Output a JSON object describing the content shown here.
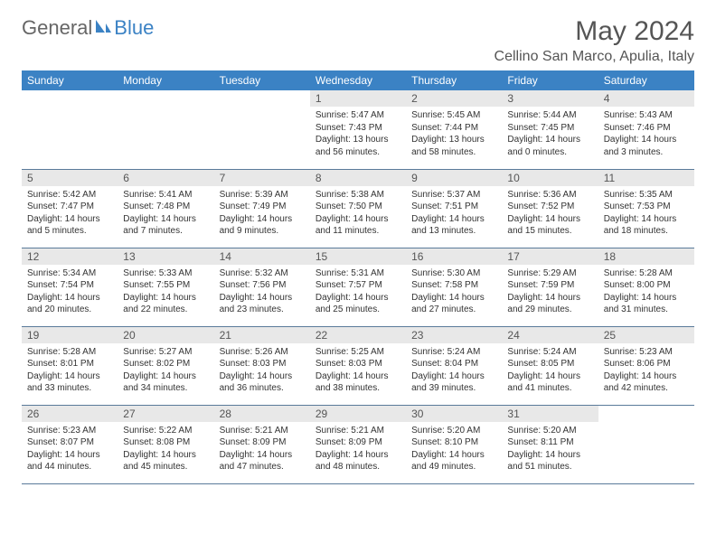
{
  "logo": {
    "gray": "General",
    "blue": "Blue"
  },
  "title": "May 2024",
  "location": "Cellino San Marco, Apulia, Italy",
  "colors": {
    "header_bg": "#3b82c4",
    "header_text": "#ffffff",
    "daynum_bg": "#e8e8e8",
    "border": "#5a7a9a",
    "body_text": "#333333",
    "title_text": "#555555"
  },
  "weekdays": [
    "Sunday",
    "Monday",
    "Tuesday",
    "Wednesday",
    "Thursday",
    "Friday",
    "Saturday"
  ],
  "weeks": [
    [
      null,
      null,
      null,
      {
        "n": "1",
        "sr": "5:47 AM",
        "ss": "7:43 PM",
        "dl": "13 hours and 56 minutes."
      },
      {
        "n": "2",
        "sr": "5:45 AM",
        "ss": "7:44 PM",
        "dl": "13 hours and 58 minutes."
      },
      {
        "n": "3",
        "sr": "5:44 AM",
        "ss": "7:45 PM",
        "dl": "14 hours and 0 minutes."
      },
      {
        "n": "4",
        "sr": "5:43 AM",
        "ss": "7:46 PM",
        "dl": "14 hours and 3 minutes."
      }
    ],
    [
      {
        "n": "5",
        "sr": "5:42 AM",
        "ss": "7:47 PM",
        "dl": "14 hours and 5 minutes."
      },
      {
        "n": "6",
        "sr": "5:41 AM",
        "ss": "7:48 PM",
        "dl": "14 hours and 7 minutes."
      },
      {
        "n": "7",
        "sr": "5:39 AM",
        "ss": "7:49 PM",
        "dl": "14 hours and 9 minutes."
      },
      {
        "n": "8",
        "sr": "5:38 AM",
        "ss": "7:50 PM",
        "dl": "14 hours and 11 minutes."
      },
      {
        "n": "9",
        "sr": "5:37 AM",
        "ss": "7:51 PM",
        "dl": "14 hours and 13 minutes."
      },
      {
        "n": "10",
        "sr": "5:36 AM",
        "ss": "7:52 PM",
        "dl": "14 hours and 15 minutes."
      },
      {
        "n": "11",
        "sr": "5:35 AM",
        "ss": "7:53 PM",
        "dl": "14 hours and 18 minutes."
      }
    ],
    [
      {
        "n": "12",
        "sr": "5:34 AM",
        "ss": "7:54 PM",
        "dl": "14 hours and 20 minutes."
      },
      {
        "n": "13",
        "sr": "5:33 AM",
        "ss": "7:55 PM",
        "dl": "14 hours and 22 minutes."
      },
      {
        "n": "14",
        "sr": "5:32 AM",
        "ss": "7:56 PM",
        "dl": "14 hours and 23 minutes."
      },
      {
        "n": "15",
        "sr": "5:31 AM",
        "ss": "7:57 PM",
        "dl": "14 hours and 25 minutes."
      },
      {
        "n": "16",
        "sr": "5:30 AM",
        "ss": "7:58 PM",
        "dl": "14 hours and 27 minutes."
      },
      {
        "n": "17",
        "sr": "5:29 AM",
        "ss": "7:59 PM",
        "dl": "14 hours and 29 minutes."
      },
      {
        "n": "18",
        "sr": "5:28 AM",
        "ss": "8:00 PM",
        "dl": "14 hours and 31 minutes."
      }
    ],
    [
      {
        "n": "19",
        "sr": "5:28 AM",
        "ss": "8:01 PM",
        "dl": "14 hours and 33 minutes."
      },
      {
        "n": "20",
        "sr": "5:27 AM",
        "ss": "8:02 PM",
        "dl": "14 hours and 34 minutes."
      },
      {
        "n": "21",
        "sr": "5:26 AM",
        "ss": "8:03 PM",
        "dl": "14 hours and 36 minutes."
      },
      {
        "n": "22",
        "sr": "5:25 AM",
        "ss": "8:03 PM",
        "dl": "14 hours and 38 minutes."
      },
      {
        "n": "23",
        "sr": "5:24 AM",
        "ss": "8:04 PM",
        "dl": "14 hours and 39 minutes."
      },
      {
        "n": "24",
        "sr": "5:24 AM",
        "ss": "8:05 PM",
        "dl": "14 hours and 41 minutes."
      },
      {
        "n": "25",
        "sr": "5:23 AM",
        "ss": "8:06 PM",
        "dl": "14 hours and 42 minutes."
      }
    ],
    [
      {
        "n": "26",
        "sr": "5:23 AM",
        "ss": "8:07 PM",
        "dl": "14 hours and 44 minutes."
      },
      {
        "n": "27",
        "sr": "5:22 AM",
        "ss": "8:08 PM",
        "dl": "14 hours and 45 minutes."
      },
      {
        "n": "28",
        "sr": "5:21 AM",
        "ss": "8:09 PM",
        "dl": "14 hours and 47 minutes."
      },
      {
        "n": "29",
        "sr": "5:21 AM",
        "ss": "8:09 PM",
        "dl": "14 hours and 48 minutes."
      },
      {
        "n": "30",
        "sr": "5:20 AM",
        "ss": "8:10 PM",
        "dl": "14 hours and 49 minutes."
      },
      {
        "n": "31",
        "sr": "5:20 AM",
        "ss": "8:11 PM",
        "dl": "14 hours and 51 minutes."
      },
      null
    ]
  ],
  "labels": {
    "sunrise": "Sunrise:",
    "sunset": "Sunset:",
    "daylight": "Daylight:"
  }
}
